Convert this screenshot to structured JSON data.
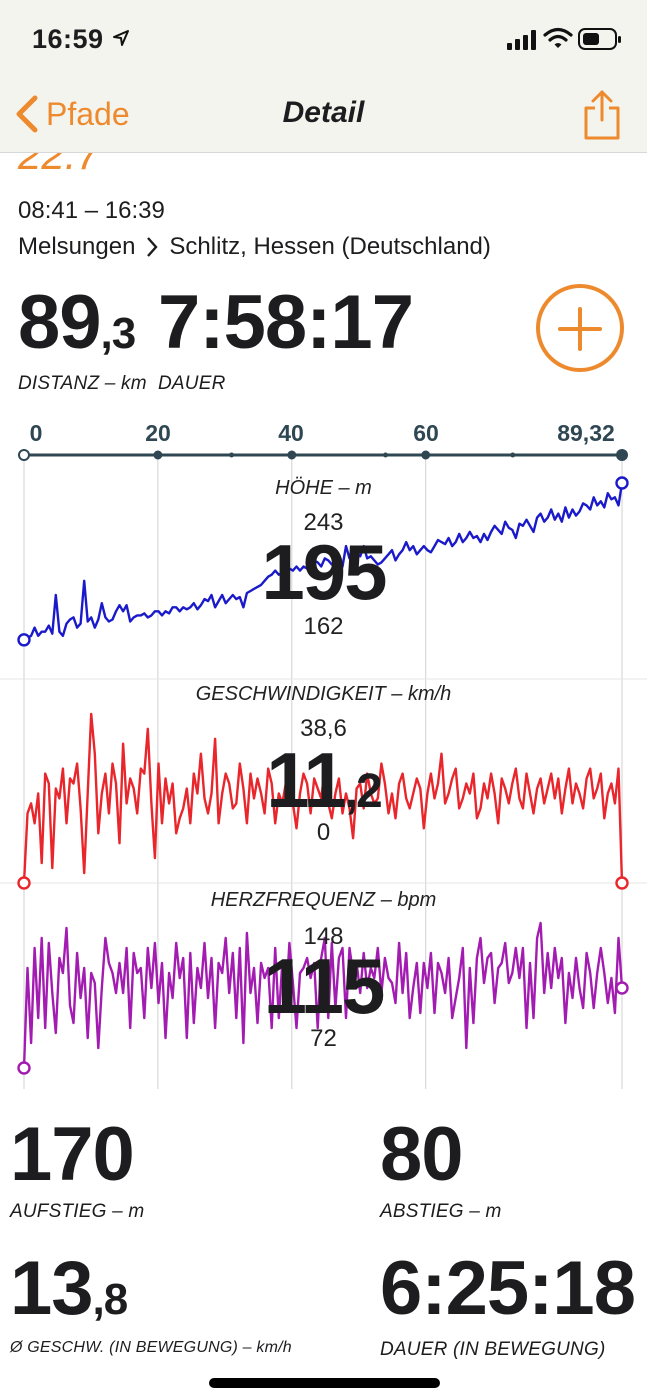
{
  "status": {
    "time": "16:59"
  },
  "nav": {
    "back_label": "Pfade",
    "title": "Detail"
  },
  "header": {
    "cut_title": "22.7",
    "time_range": "08:41 – 16:39",
    "route_from": "Melsungen",
    "route_to": "Schlitz, Hessen (Deutschland)"
  },
  "summary": {
    "distance_int": "89",
    "distance_dec": ",3",
    "distance_label": "DISTANZ",
    "distance_unit": "– km",
    "duration": "7:58:17",
    "duration_label": "DAUER"
  },
  "axis": {
    "ticks": [
      "0",
      "20",
      "40",
      "60",
      "89,32"
    ]
  },
  "chart_data": [
    {
      "type": "line",
      "title": "HÖHE – m",
      "series": [
        {
          "values": [
            166,
            167,
            168,
            172,
            168,
            170,
            170,
            173,
            169,
            188,
            170,
            168,
            174,
            176,
            177,
            172,
            174,
            195,
            175,
            177,
            172,
            176,
            184,
            177,
            175,
            176,
            180,
            183,
            180,
            183,
            175,
            177,
            178,
            178,
            179,
            177,
            178,
            180,
            180,
            178,
            180,
            179,
            182,
            182,
            180,
            182,
            181,
            182,
            184,
            181,
            183,
            186,
            185,
            188,
            182,
            185,
            188,
            184,
            186,
            188,
            186,
            187,
            182,
            189,
            190,
            191,
            192,
            193,
            195,
            197,
            198,
            200,
            198,
            199,
            200,
            201,
            200,
            202,
            200,
            202,
            201,
            203,
            205,
            204,
            202,
            206,
            205,
            203,
            204,
            199,
            202,
            212,
            206,
            211,
            208,
            207,
            212,
            206,
            207,
            205,
            203,
            204,
            206,
            208,
            210,
            205,
            208,
            210,
            214,
            210,
            212,
            208,
            210,
            212,
            210,
            209,
            212,
            215,
            214,
            213,
            216,
            212,
            214,
            218,
            214,
            216,
            219,
            216,
            217,
            214,
            218,
            215,
            219,
            222,
            220,
            218,
            224,
            221,
            220,
            216,
            223,
            222,
            225,
            222,
            219,
            226,
            228,
            224,
            226,
            230,
            225,
            228,
            224,
            231,
            226,
            230,
            227,
            229,
            233,
            232,
            230,
            236,
            232,
            234,
            231,
            238,
            235,
            236,
            232,
            243
          ]
        }
      ],
      "min": "162",
      "max": "243",
      "avg": "195",
      "avg_dec": ""
    },
    {
      "type": "line",
      "title": "GESCHWINDIGKEIT – km/h",
      "series": [
        {
          "values": [
            0,
            14,
            16,
            12,
            18,
            4,
            22,
            20,
            3,
            19,
            17,
            23,
            12,
            21,
            20,
            24,
            15,
            2,
            18,
            34,
            26,
            10,
            18,
            22,
            14,
            24,
            20,
            8,
            28,
            16,
            21,
            19,
            14,
            23,
            22,
            31,
            16,
            5,
            24,
            12,
            21,
            16,
            20,
            10,
            13,
            15,
            19,
            12,
            22,
            18,
            26,
            17,
            14,
            18,
            29,
            12,
            18,
            22,
            20,
            15,
            16,
            24,
            19,
            12,
            22,
            17,
            21,
            18,
            14,
            23,
            20,
            12,
            18,
            16,
            20,
            24,
            16,
            11,
            18,
            22,
            20,
            14,
            21,
            19,
            17,
            23,
            16,
            13,
            18,
            21,
            14,
            18,
            15,
            9,
            19,
            20,
            15,
            22,
            18,
            16,
            17,
            24,
            20,
            14,
            18,
            13,
            20,
            22,
            17,
            15,
            18,
            21,
            19,
            11,
            18,
            22,
            17,
            20,
            26,
            16,
            18,
            21,
            23,
            15,
            17,
            20,
            18,
            22,
            13,
            15,
            20,
            17,
            22,
            18,
            12,
            21,
            19,
            16,
            20,
            23,
            17,
            15,
            22,
            18,
            14,
            19,
            21,
            16,
            19,
            22,
            17,
            21,
            14,
            19,
            23,
            16,
            20,
            18,
            15,
            21,
            23,
            17,
            19,
            22,
            13,
            18,
            20,
            16,
            23,
            0
          ]
        }
      ],
      "min": "0",
      "max": "38,6",
      "avg": "11",
      "avg_dec": ",2"
    },
    {
      "type": "line",
      "title": "HERZFREQUENZ – bpm",
      "series": [
        {
          "values": [
            80,
            120,
            90,
            128,
            100,
            132,
            96,
            130,
            110,
            94,
            124,
            118,
            136,
            105,
            98,
            126,
            108,
            120,
            92,
            118,
            114,
            88,
            112,
            132,
            122,
            118,
            110,
            122,
            110,
            128,
            96,
            126,
            118,
            120,
            100,
            128,
            112,
            130,
            106,
            122,
            92,
            118,
            108,
            130,
            116,
            124,
            92,
            126,
            98,
            120,
            112,
            130,
            108,
            124,
            96,
            122,
            118,
            132,
            110,
            126,
            100,
            128,
            90,
            134,
            110,
            120,
            98,
            122,
            116,
            120,
            96,
            128,
            100,
            122,
            106,
            130,
            114,
            96,
            118,
            120,
            124,
            116,
            122,
            96,
            124,
            132,
            100,
            130,
            104,
            124,
            128,
            100,
            128,
            118,
            122,
            110,
            126,
            112,
            120,
            116,
            128,
            110,
            124,
            116,
            114,
            106,
            130,
            110,
            126,
            100,
            112,
            122,
            102,
            122,
            112,
            126,
            102,
            122,
            118,
            110,
            124,
            100,
            108,
            116,
            128,
            88,
            120,
            98,
            124,
            132,
            114,
            124,
            126,
            106,
            120,
            122,
            130,
            114,
            118,
            128,
            116,
            128,
            96,
            122,
            100,
            132,
            138,
            110,
            126,
            112,
            128,
            116,
            124,
            98,
            118,
            108,
            124,
            112,
            104,
            126,
            118,
            104,
            118,
            128,
            118,
            106,
            116,
            102,
            132,
            112
          ]
        }
      ],
      "min": "72",
      "max": "148",
      "avg": "115",
      "avg_dec": ""
    }
  ],
  "stats": {
    "ascent_value": "170",
    "ascent_label": "AUFSTIEG",
    "ascent_unit": "– m",
    "descent_value": "80",
    "descent_label": "ABSTIEG",
    "descent_unit": "– m",
    "avgspeed_int": "13",
    "avgspeed_dec": ",8",
    "avgspeed_label": "Ø GESCHW. (IN BEWEGUNG)",
    "avgspeed_unit": "– km/h",
    "moving_duration": "6:25:18",
    "moving_duration_label": "DAUER (IN BEWEGUNG)"
  },
  "colors": {
    "accent": "#ee8a2e",
    "elevation": "#1a1acb",
    "speed": "#e8262b",
    "heartrate": "#a31cb1",
    "axis": "#2f4753",
    "grid": "#d0d0d0"
  }
}
